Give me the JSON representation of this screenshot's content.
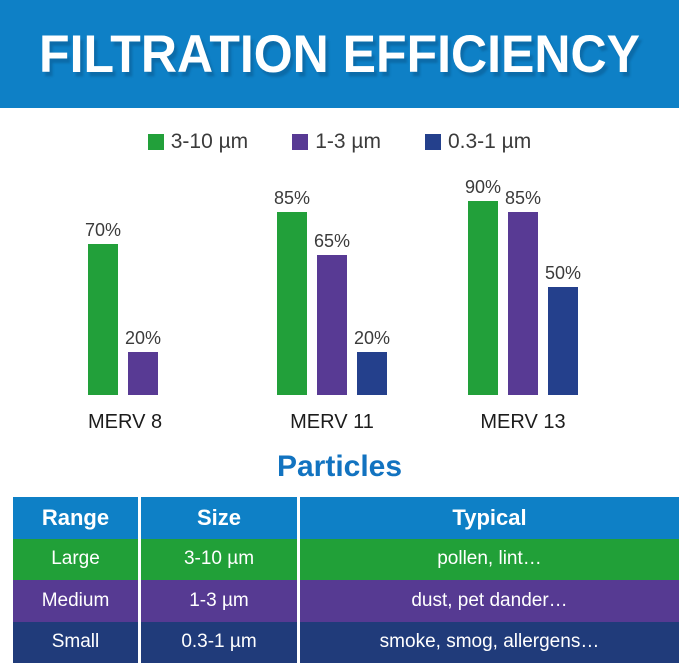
{
  "header": {
    "title": "FILTRATION EFFICIENCY",
    "bg_color": "#0e80c6",
    "text_color": "#ffffff"
  },
  "legend": {
    "items": [
      {
        "label": "3-10 µm",
        "color": "#22a03a"
      },
      {
        "label": "1-3 µm",
        "color": "#583a94"
      },
      {
        "label": "0.3-1 µm",
        "color": "#24408c"
      }
    ]
  },
  "chart_data": {
    "type": "bar",
    "categories": [
      "MERV 8",
      "MERV 11",
      "MERV 13"
    ],
    "series": [
      {
        "name": "3-10 µm",
        "color": "#22a03a",
        "values": [
          70,
          85,
          90
        ]
      },
      {
        "name": "1-3 µm",
        "color": "#583a94",
        "values": [
          20,
          65,
          85
        ]
      },
      {
        "name": "0.3-1 µm",
        "color": "#24408c",
        "values": [
          null,
          20,
          50
        ]
      }
    ],
    "value_suffix": "%",
    "ylim": [
      0,
      100
    ],
    "grid": false,
    "legend_position": "top",
    "bar_labels_shown": true
  },
  "particles": {
    "title": "Particles",
    "title_color": "#1273c0"
  },
  "table": {
    "header_bg": "#0e80c6",
    "headers": [
      "Range",
      "Size",
      "Typical"
    ],
    "rows": [
      {
        "range": "Large",
        "size": "3-10 µm",
        "typical": "pollen, lint…",
        "color": "#21a038"
      },
      {
        "range": "Medium",
        "size": "1-3 µm",
        "typical": "dust, pet dander…",
        "color": "#563a92"
      },
      {
        "range": "Small",
        "size": "0.3-1 µm",
        "typical": "smoke, smog, allergens…",
        "color": "#203b7a"
      }
    ]
  }
}
